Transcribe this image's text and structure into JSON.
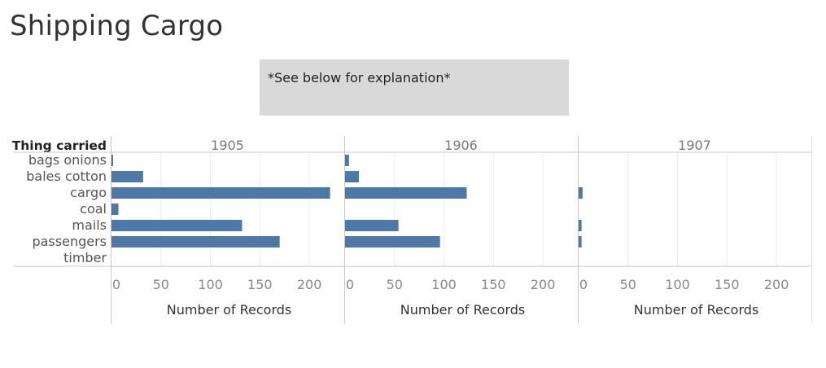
{
  "title": "Shipping Cargo",
  "note": "*See below for explanation*",
  "chart_data": {
    "type": "bar",
    "orientation": "horizontal",
    "row_header": "Thing carried",
    "categories": [
      "bags onions",
      "bales cotton",
      "cargo",
      "coal",
      "mails",
      "passengers",
      "timber"
    ],
    "panels": [
      {
        "column": "1905",
        "values": [
          1,
          32,
          221,
          7,
          132,
          170,
          0
        ]
      },
      {
        "column": "1906",
        "values": [
          4,
          14,
          123,
          0,
          54,
          96,
          0
        ]
      },
      {
        "column": "1907",
        "values": [
          0,
          0,
          4,
          0,
          3,
          3,
          0
        ]
      }
    ],
    "xlabel": "Number of Records",
    "xticks": [
      0,
      50,
      100,
      150,
      200
    ],
    "xlim": [
      0,
      232
    ],
    "bar_color": "#4e79a7",
    "grid": true
  }
}
